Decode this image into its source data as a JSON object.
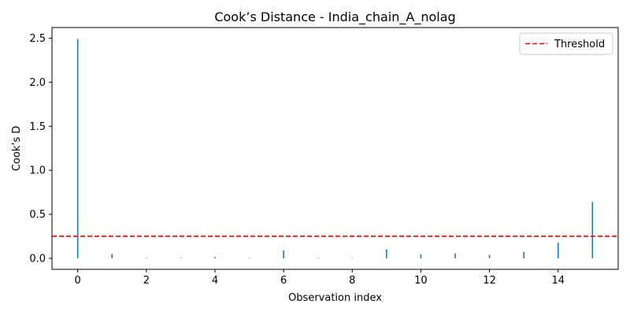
{
  "chart_data": {
    "type": "bar",
    "title": "Cook’s Distance - India_chain_A_nolag",
    "xlabel": "Observation index",
    "ylabel": "Cook’s D",
    "x": [
      0,
      1,
      2,
      3,
      4,
      5,
      6,
      7,
      8,
      9,
      10,
      11,
      12,
      13,
      14,
      15
    ],
    "values": [
      2.49,
      0.05,
      0.005,
      0.005,
      0.015,
      0.005,
      0.09,
      0.005,
      0.005,
      0.1,
      0.045,
      0.055,
      0.04,
      0.075,
      0.18,
      0.64
    ],
    "xlim": [
      -0.75,
      15.75
    ],
    "ylim": [
      -0.125,
      2.62
    ],
    "xticks": [
      0,
      2,
      4,
      6,
      8,
      10,
      12,
      14
    ],
    "xtick_labels": [
      "0",
      "2",
      "4",
      "6",
      "8",
      "10",
      "12",
      "14"
    ],
    "yticks": [
      0.0,
      0.5,
      1.0,
      1.5,
      2.0,
      2.5
    ],
    "ytick_labels": [
      "0.0",
      "0.5",
      "1.0",
      "1.5",
      "2.0",
      "2.5"
    ],
    "threshold": {
      "value": 0.25,
      "label": "Threshold",
      "color": "#ff0000",
      "style": "dashed"
    },
    "series_color": "#1f77b4",
    "legend_position": "top-right",
    "grid": false
  }
}
